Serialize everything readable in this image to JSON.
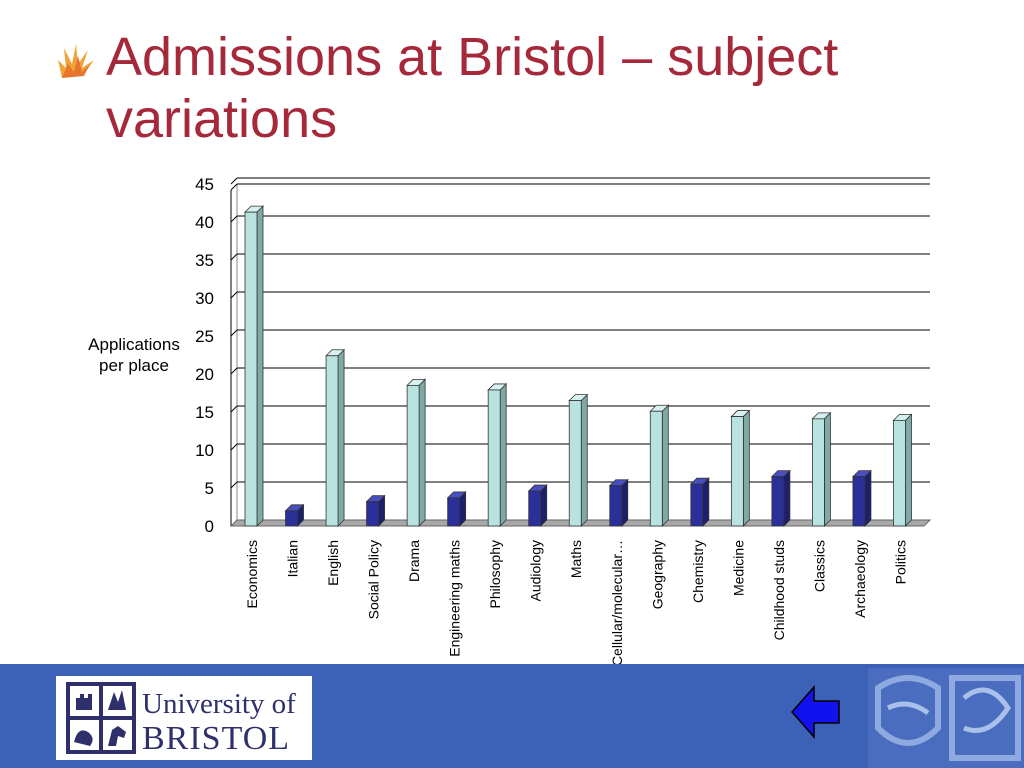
{
  "slide": {
    "title": "Admissions at Bristol – subject variations",
    "title_color": "#a6283b"
  },
  "footer": {
    "logo_line1": "University of",
    "logo_line2": "BRISTOL",
    "background": "#3c62b8",
    "nav_icon": "back-arrow-icon"
  },
  "chart_data": {
    "type": "bar",
    "style": "3d-columns",
    "ylabel": "Applications per place",
    "xlabel": "",
    "ylim": [
      0,
      45
    ],
    "yticks": [
      0,
      5,
      10,
      15,
      20,
      25,
      30,
      35,
      40,
      45
    ],
    "grid": true,
    "categories": [
      "Economics",
      "Italian",
      "English",
      "Social Policy",
      "Drama",
      "Engineering maths",
      "Philosophy",
      "Audiology",
      "Maths",
      "Cellular/molecular…",
      "Geography",
      "Chemistry",
      "Medicine",
      "Childhood studs",
      "Classics",
      "Archaeology",
      "Politics"
    ],
    "values": [
      41.3,
      2.0,
      22.4,
      3.2,
      18.5,
      3.7,
      17.9,
      4.6,
      16.5,
      5.3,
      15.1,
      5.5,
      14.4,
      6.5,
      14.1,
      6.5,
      13.9
    ],
    "colors": {
      "light": "#b9e3e0",
      "dark": "#2b2f9a"
    }
  }
}
